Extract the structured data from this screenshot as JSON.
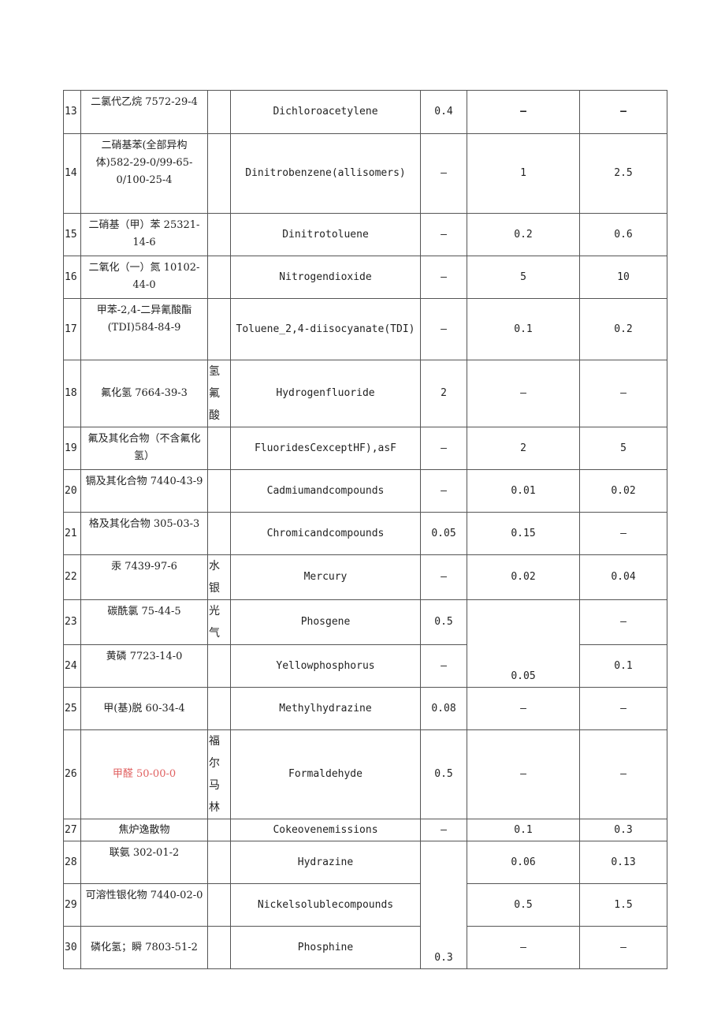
{
  "rows": [
    {
      "no": "13",
      "zh": "二氯代乙烷 7572-29-4",
      "alias": "",
      "en": "Dichloroacetylene",
      "v1": "0.4",
      "v2": "—",
      "v3": "—"
    },
    {
      "no": "14",
      "zh": "二硝基苯(全部异构体)582-29-0/99-65-0/100-25-4",
      "alias": "",
      "en": "Dinitrobenzene(allisomers)",
      "v1": "—",
      "v2": "1",
      "v3": "2.5"
    },
    {
      "no": "15",
      "zh": "二硝基（甲）苯 25321-14-6",
      "alias": "",
      "en": "Dinitrotoluene",
      "v1": "—",
      "v2": "0.2",
      "v3": "0.6"
    },
    {
      "no": "16",
      "zh": "二氧化（一）氮 10102-44-0",
      "alias": "",
      "en": "Nitrogendioxide",
      "v1": "—",
      "v2": "5",
      "v3": "10"
    },
    {
      "no": "17",
      "zh": "甲苯-2,4-二异氰酸酯(TDI)584-84-9",
      "alias": "",
      "en": "Toluene_2,4-diisocyanate(TDI)",
      "v1": "—",
      "v2": "0.1",
      "v3": "0.2"
    },
    {
      "no": "18",
      "zh": "氟化氢 7664-39-3",
      "alias": "氢氟酸",
      "en": "Hydrogenfluoride",
      "v1": "2",
      "v2": "—",
      "v3": "—"
    },
    {
      "no": "19",
      "zh": "氟及其化合物（不含氟化氢）",
      "alias": "",
      "en": "FluoridesCexceptHF),asF",
      "v1": "—",
      "v2": "2",
      "v3": "5"
    },
    {
      "no": "20",
      "zh": "镉及其化合物 7440-43-9",
      "alias": "",
      "en": "Cadmiumandcompounds",
      "v1": "—",
      "v2": "0.01",
      "v3": "0.02"
    },
    {
      "no": "21",
      "zh": "格及其化合物 305-03-3",
      "alias": "",
      "en": "Chromicandcompounds",
      "v1": "0.05",
      "v2": "0.15",
      "v3": "—"
    },
    {
      "no": "22",
      "zh": "汞 7439-97-6",
      "alias": "水银",
      "en": "Mercury",
      "v1": "—",
      "v2": "0.02",
      "v3": "0.04"
    },
    {
      "no": "23",
      "zh": "碳酰氯 75-44-5",
      "alias": "光气",
      "en": "Phosgene",
      "v1": "0.5",
      "v2": "0.05",
      "v3": "—"
    },
    {
      "no": "24",
      "zh": "黄磷 7723-14-0",
      "alias": "",
      "en": "Yellowphosphorus",
      "v1": "—",
      "v3": "0.1"
    },
    {
      "no": "25",
      "zh": "甲(基)脱 60-34-4",
      "alias": "",
      "en": "Methylhydrazine",
      "v1": "0.08",
      "v2": "—",
      "v3": "—"
    },
    {
      "no": "26",
      "zh": "甲醛 50-00-0",
      "alias": "福尔马林",
      "en": "Formaldehyde",
      "v1": "0.5",
      "v2": "—",
      "v3": "—"
    },
    {
      "no": "27",
      "zh": "焦炉逸散物",
      "alias": "",
      "en": "Cokeovenemissions",
      "v1": "—",
      "v2": "0.1",
      "v3": "0.3"
    },
    {
      "no": "28",
      "zh": "联氨 302-01-2",
      "alias": "",
      "en": "Hydrazine",
      "v1": "0.3",
      "v2": "0.06",
      "v3": "0.13"
    },
    {
      "no": "29",
      "zh": "可溶性银化物 7440-02-0",
      "alias": "",
      "en": "Nickelsolublecompounds",
      "v2": "0.5",
      "v3": "1.5"
    },
    {
      "no": "30",
      "zh": "磷化氢；瞬 7803-51-2",
      "alias": "",
      "en": "Phosphine",
      "v2": "—",
      "v3": "—"
    }
  ],
  "highlight_color": "#e06060"
}
